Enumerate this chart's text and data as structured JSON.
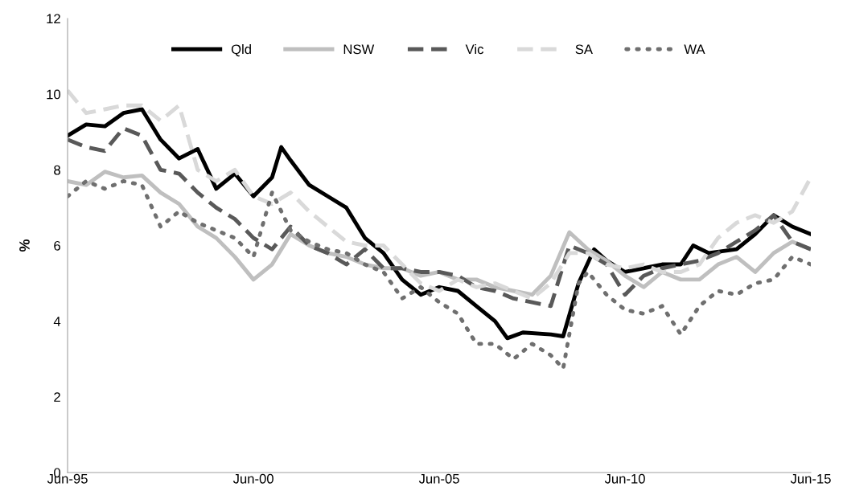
{
  "chart_data": {
    "type": "line",
    "ylabel": "%",
    "ylim": [
      0,
      12
    ],
    "yticks": [
      0,
      2,
      4,
      6,
      8,
      10,
      12
    ],
    "xlim": [
      "1995-06",
      "2015-06"
    ],
    "xticks": [
      {
        "value": "1995-06",
        "label": "Jun-95"
      },
      {
        "value": "2000-06",
        "label": "Jun-00"
      },
      {
        "value": "2005-06",
        "label": "Jun-05"
      },
      {
        "value": "2010-06",
        "label": "Jun-10"
      },
      {
        "value": "2015-06",
        "label": "Jun-15"
      }
    ],
    "grid": false,
    "legend": "top",
    "marker": "none",
    "series": [
      {
        "name": "Qld",
        "color": "#000000",
        "line_style": "solid",
        "x": [
          "1995-06",
          "1995-12",
          "1996-06",
          "1996-12",
          "1997-06",
          "1997-12",
          "1998-06",
          "1998-12",
          "1999-06",
          "1999-12",
          "2000-06",
          "2000-12",
          "2001-03",
          "2001-06",
          "2001-12",
          "2002-06",
          "2002-12",
          "2003-06",
          "2003-12",
          "2004-06",
          "2004-12",
          "2005-06",
          "2005-12",
          "2006-06",
          "2006-12",
          "2007-04",
          "2007-09",
          "2008-06",
          "2008-10",
          "2009-03",
          "2009-08",
          "2009-12",
          "2010-06",
          "2010-12",
          "2011-06",
          "2011-12",
          "2012-04",
          "2012-09",
          "2013-06",
          "2013-12",
          "2014-06",
          "2014-12",
          "2015-06"
        ],
        "values": [
          8.9,
          9.2,
          9.15,
          9.5,
          9.6,
          8.8,
          8.3,
          8.55,
          7.5,
          7.9,
          7.3,
          7.8,
          8.6,
          8.25,
          7.6,
          7.3,
          7.0,
          6.2,
          5.8,
          5.1,
          4.7,
          4.9,
          4.8,
          4.4,
          4.0,
          3.55,
          3.7,
          3.65,
          3.6,
          5.0,
          5.9,
          5.6,
          5.3,
          5.4,
          5.5,
          5.5,
          6.0,
          5.8,
          5.9,
          6.3,
          6.8,
          6.5,
          6.3
        ]
      },
      {
        "name": "NSW",
        "color": "#bfbfbf",
        "line_style": "solid",
        "x": [
          "1995-06",
          "1995-12",
          "1996-06",
          "1996-12",
          "1997-06",
          "1997-12",
          "1998-06",
          "1998-12",
          "1999-06",
          "1999-12",
          "2000-06",
          "2000-12",
          "2001-06",
          "2001-12",
          "2002-06",
          "2002-12",
          "2003-06",
          "2003-12",
          "2004-06",
          "2004-12",
          "2005-06",
          "2005-12",
          "2006-06",
          "2006-12",
          "2007-06",
          "2007-12",
          "2008-06",
          "2008-12",
          "2009-06",
          "2009-12",
          "2010-06",
          "2010-12",
          "2011-06",
          "2011-12",
          "2012-06",
          "2012-12",
          "2013-06",
          "2013-12",
          "2014-06",
          "2014-12",
          "2015-06"
        ],
        "values": [
          7.7,
          7.6,
          7.95,
          7.8,
          7.85,
          7.4,
          7.1,
          6.5,
          6.2,
          5.7,
          5.1,
          5.5,
          6.3,
          6.0,
          5.8,
          5.7,
          5.5,
          5.4,
          5.4,
          5.2,
          5.3,
          5.1,
          5.1,
          4.9,
          4.8,
          4.7,
          5.2,
          6.35,
          5.9,
          5.6,
          5.2,
          4.9,
          5.3,
          5.1,
          5.1,
          5.5,
          5.7,
          5.3,
          5.8,
          6.1,
          5.9
        ]
      },
      {
        "name": "Vic",
        "color": "#595959",
        "line_style": "dashed",
        "x": [
          "1995-06",
          "1995-12",
          "1996-06",
          "1996-12",
          "1997-06",
          "1997-12",
          "1998-06",
          "1998-12",
          "1999-06",
          "1999-12",
          "2000-06",
          "2000-12",
          "2001-06",
          "2001-12",
          "2002-06",
          "2002-12",
          "2003-06",
          "2003-12",
          "2004-06",
          "2004-12",
          "2005-06",
          "2005-12",
          "2006-06",
          "2006-12",
          "2007-06",
          "2007-12",
          "2008-06",
          "2008-12",
          "2009-06",
          "2009-12",
          "2010-06",
          "2010-12",
          "2011-06",
          "2011-12",
          "2012-06",
          "2012-12",
          "2013-06",
          "2013-12",
          "2014-06",
          "2014-12",
          "2015-06"
        ],
        "values": [
          8.8,
          8.6,
          8.5,
          9.1,
          8.9,
          8.0,
          7.9,
          7.4,
          7.0,
          6.7,
          6.2,
          5.9,
          6.5,
          6.0,
          5.8,
          5.5,
          5.9,
          5.4,
          5.4,
          5.3,
          5.3,
          5.2,
          4.9,
          4.8,
          4.6,
          4.5,
          4.4,
          6.0,
          5.8,
          5.5,
          4.7,
          5.2,
          5.4,
          5.5,
          5.6,
          5.8,
          6.1,
          6.4,
          6.8,
          6.1,
          5.9
        ]
      },
      {
        "name": "SA",
        "color": "#d9d9d9",
        "line_style": "dashed",
        "x": [
          "1995-06",
          "1995-12",
          "1996-06",
          "1996-12",
          "1997-06",
          "1997-12",
          "1998-06",
          "1998-12",
          "1999-06",
          "1999-12",
          "2000-06",
          "2000-12",
          "2001-06",
          "2001-12",
          "2002-06",
          "2002-12",
          "2003-06",
          "2003-12",
          "2004-06",
          "2004-12",
          "2005-06",
          "2005-12",
          "2006-06",
          "2006-12",
          "2007-06",
          "2007-12",
          "2008-06",
          "2008-12",
          "2009-06",
          "2009-12",
          "2010-06",
          "2010-12",
          "2011-06",
          "2011-12",
          "2012-06",
          "2012-12",
          "2013-06",
          "2013-12",
          "2014-06",
          "2014-12",
          "2015-06"
        ],
        "values": [
          10.1,
          9.5,
          9.6,
          9.7,
          9.7,
          9.3,
          9.7,
          8.0,
          7.7,
          8.0,
          7.3,
          7.1,
          7.4,
          6.9,
          6.5,
          6.1,
          6.0,
          6.0,
          5.5,
          5.0,
          4.8,
          5.1,
          4.9,
          5.0,
          4.8,
          4.6,
          5.0,
          5.8,
          5.8,
          5.5,
          5.4,
          5.5,
          5.3,
          5.3,
          5.5,
          6.2,
          6.6,
          6.8,
          6.6,
          6.9,
          7.8
        ]
      },
      {
        "name": "WA",
        "color": "#6f6f6f",
        "line_style": "dotted",
        "x": [
          "1995-06",
          "1995-12",
          "1996-06",
          "1996-12",
          "1997-06",
          "1997-12",
          "1998-06",
          "1998-12",
          "1999-06",
          "1999-12",
          "2000-06",
          "2000-12",
          "2001-06",
          "2001-12",
          "2002-06",
          "2002-12",
          "2003-06",
          "2003-12",
          "2004-06",
          "2004-12",
          "2005-06",
          "2005-12",
          "2006-06",
          "2006-12",
          "2007-06",
          "2007-12",
          "2008-06",
          "2008-10",
          "2009-03",
          "2009-06",
          "2009-12",
          "2010-06",
          "2010-12",
          "2011-06",
          "2011-12",
          "2012-06",
          "2012-12",
          "2013-06",
          "2013-12",
          "2014-06",
          "2014-12",
          "2015-06"
        ],
        "values": [
          7.3,
          7.7,
          7.5,
          7.7,
          7.6,
          6.5,
          6.9,
          6.6,
          6.4,
          6.2,
          5.7,
          7.4,
          6.4,
          6.1,
          5.9,
          5.8,
          5.5,
          5.3,
          4.6,
          4.9,
          4.5,
          4.2,
          3.4,
          3.4,
          3.0,
          3.4,
          3.1,
          2.75,
          5.0,
          5.3,
          4.7,
          4.3,
          4.2,
          4.4,
          3.65,
          4.4,
          4.8,
          4.7,
          5.0,
          5.1,
          5.7,
          5.5
        ]
      }
    ]
  }
}
